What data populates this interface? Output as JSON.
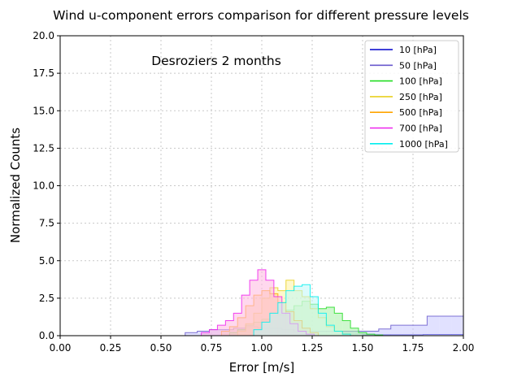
{
  "chart_data": {
    "type": "histogram",
    "title": "Wind u-component errors comparison for different pressure levels",
    "xlabel": "Error [m/s]",
    "ylabel": "Normalized Counts",
    "annotation": "Desroziers 2 months",
    "xlim": [
      0,
      2
    ],
    "ylim": [
      0,
      20
    ],
    "xticks": [
      "0.00",
      "0.25",
      "0.50",
      "0.75",
      "1.00",
      "1.25",
      "1.50",
      "1.75",
      "2.00"
    ],
    "yticks": [
      "0.0",
      "2.5",
      "5.0",
      "7.5",
      "10.0",
      "12.5",
      "15.0",
      "17.5",
      "20.0"
    ],
    "grid": true,
    "legend_position": "top-right",
    "series": [
      {
        "name": "10 [hPa]",
        "color": "#0000cc",
        "fill": "none",
        "bins": [
          [
            1.5,
            0.06
          ],
          [
            1.6,
            0.06
          ],
          [
            1.7,
            0.06
          ],
          [
            1.8,
            0.08
          ],
          [
            1.9,
            0.08
          ]
        ],
        "bin_width": 0.1
      },
      {
        "name": "50 [hPa]",
        "color": "#6a5acd",
        "fill": "#c8c8ff",
        "bins": [
          [
            0.62,
            0.2
          ],
          [
            0.68,
            0.3
          ],
          [
            0.74,
            0.4
          ],
          [
            0.8,
            0.4
          ],
          [
            0.86,
            0.5
          ],
          [
            0.92,
            0.6
          ],
          [
            0.98,
            0.5
          ],
          [
            1.04,
            0.5
          ],
          [
            1.1,
            0.4
          ],
          [
            1.16,
            0.3
          ],
          [
            1.22,
            0.3
          ],
          [
            1.28,
            0.3
          ],
          [
            1.34,
            0.3
          ],
          [
            1.4,
            0.3
          ],
          [
            1.46,
            0.3
          ],
          [
            1.52,
            0.3
          ],
          [
            1.58,
            0.45
          ],
          [
            1.64,
            0.7
          ],
          [
            1.7,
            0.7
          ],
          [
            1.76,
            0.7
          ],
          [
            1.82,
            1.3
          ],
          [
            1.88,
            1.3
          ],
          [
            1.94,
            1.3
          ]
        ],
        "bin_width": 0.06
      },
      {
        "name": "100 [hPa]",
        "color": "#22dd22",
        "fill": "#a8f0a8",
        "bins": [
          [
            0.84,
            0.2
          ],
          [
            0.88,
            0.4
          ],
          [
            0.92,
            0.7
          ],
          [
            0.96,
            0.9
          ],
          [
            1.0,
            1.1
          ],
          [
            1.04,
            1.5
          ],
          [
            1.08,
            1.4
          ],
          [
            1.12,
            1.7
          ],
          [
            1.16,
            2.0
          ],
          [
            1.2,
            2.3
          ],
          [
            1.24,
            2.1
          ],
          [
            1.28,
            1.8
          ],
          [
            1.32,
            1.9
          ],
          [
            1.36,
            1.5
          ],
          [
            1.4,
            1.0
          ],
          [
            1.44,
            0.5
          ],
          [
            1.48,
            0.2
          ],
          [
            1.52,
            0.1
          ],
          [
            1.56,
            0.05
          ]
        ],
        "bin_width": 0.04
      },
      {
        "name": "250 [hPa]",
        "color": "#e8d020",
        "fill": "#fff3a0",
        "bins": [
          [
            0.88,
            0.3
          ],
          [
            0.92,
            0.8
          ],
          [
            0.96,
            1.5
          ],
          [
            1.0,
            2.5
          ],
          [
            1.04,
            3.2
          ],
          [
            1.08,
            3.0
          ],
          [
            1.12,
            3.7
          ],
          [
            1.16,
            3.0
          ],
          [
            1.2,
            2.6
          ],
          [
            1.24,
            1.8
          ],
          [
            1.28,
            1.2
          ],
          [
            1.32,
            0.6
          ],
          [
            1.36,
            0.3
          ],
          [
            1.4,
            0.1
          ]
        ],
        "bin_width": 0.04
      },
      {
        "name": "500 [hPa]",
        "color": "#ffa500",
        "fill": "#ffd59a",
        "bins": [
          [
            0.8,
            0.3
          ],
          [
            0.84,
            0.6
          ],
          [
            0.88,
            1.2
          ],
          [
            0.92,
            2.0
          ],
          [
            0.96,
            2.7
          ],
          [
            1.0,
            3.0
          ],
          [
            1.04,
            2.8
          ],
          [
            1.08,
            2.2
          ],
          [
            1.12,
            1.6
          ],
          [
            1.16,
            1.0
          ],
          [
            1.2,
            0.5
          ],
          [
            1.24,
            0.2
          ]
        ],
        "bin_width": 0.04
      },
      {
        "name": "700 [hPa]",
        "color": "#ee22ee",
        "fill": "#ffb8e0",
        "bins": [
          [
            0.7,
            0.2
          ],
          [
            0.74,
            0.4
          ],
          [
            0.78,
            0.7
          ],
          [
            0.82,
            1.0
          ],
          [
            0.86,
            1.5
          ],
          [
            0.9,
            2.7
          ],
          [
            0.94,
            3.7
          ],
          [
            0.98,
            4.4
          ],
          [
            1.02,
            3.7
          ],
          [
            1.06,
            2.6
          ],
          [
            1.1,
            1.5
          ],
          [
            1.14,
            0.8
          ],
          [
            1.18,
            0.3
          ],
          [
            1.22,
            0.1
          ]
        ],
        "bin_width": 0.04
      },
      {
        "name": "1000 [hPa]",
        "color": "#00eeee",
        "fill": "#c0f8f8",
        "bins": [
          [
            0.96,
            0.4
          ],
          [
            1.0,
            0.9
          ],
          [
            1.04,
            1.5
          ],
          [
            1.08,
            2.2
          ],
          [
            1.12,
            3.0
          ],
          [
            1.16,
            3.3
          ],
          [
            1.2,
            3.4
          ],
          [
            1.24,
            2.6
          ],
          [
            1.28,
            1.5
          ],
          [
            1.32,
            0.7
          ],
          [
            1.36,
            0.3
          ],
          [
            1.4,
            0.1
          ]
        ],
        "bin_width": 0.04
      }
    ]
  }
}
